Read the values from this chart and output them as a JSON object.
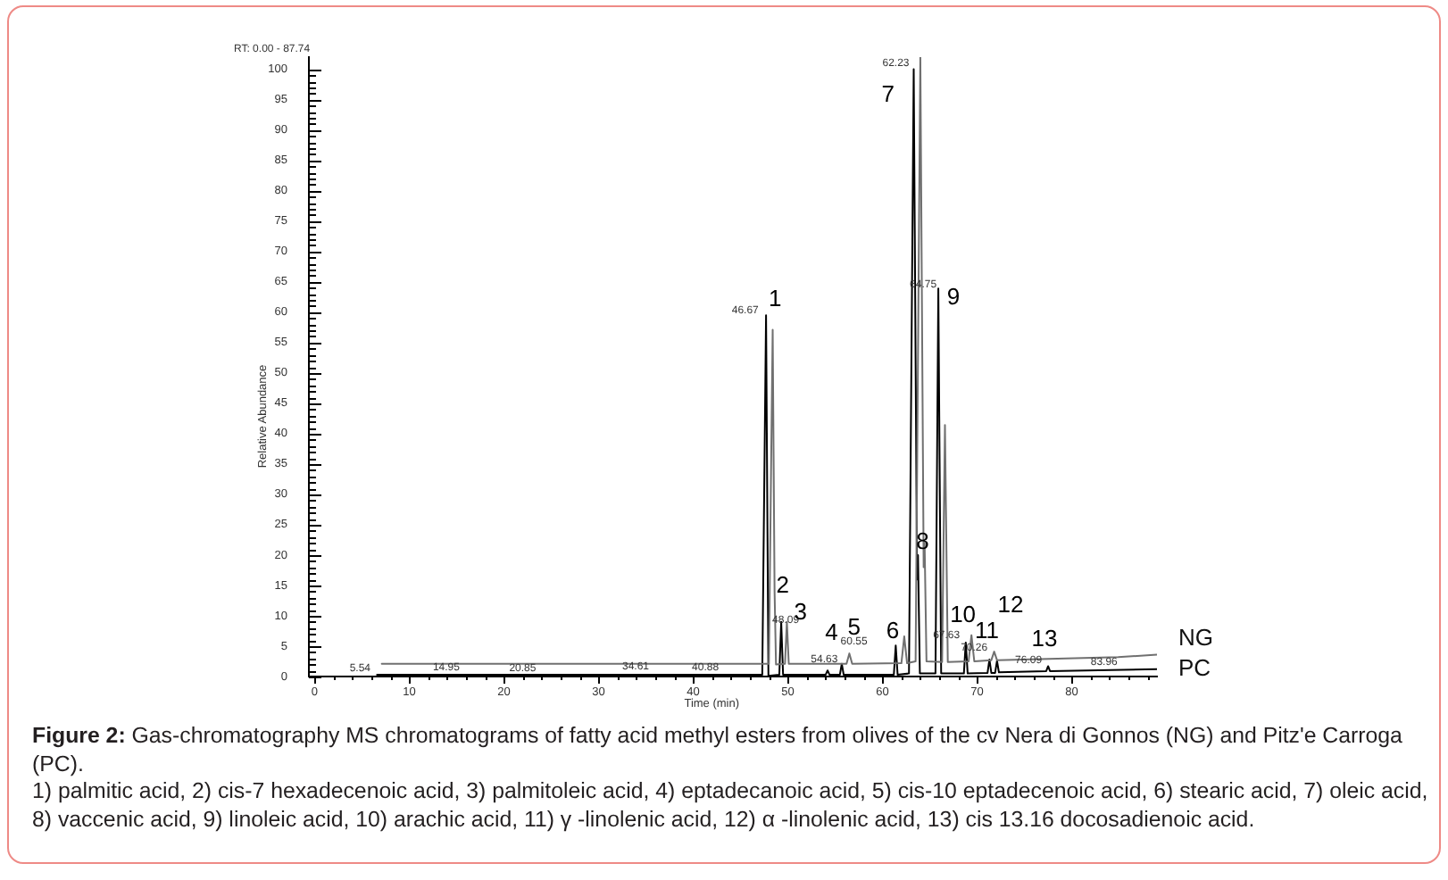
{
  "chart_data": {
    "type": "line",
    "xlabel": "Time (min)",
    "ylabel": "Relative Abundance",
    "xlim": [
      -0.6,
      89
    ],
    "ylim": [
      0,
      102
    ],
    "xticks": [
      0,
      {
        "value": 2,
        "label": null
      },
      {
        "value": 4,
        "label": null
      },
      {
        "value": 6,
        "label": null
      },
      {
        "value": 8,
        "label": null
      },
      10,
      {
        "value": 12,
        "label": null
      },
      {
        "value": 14,
        "label": null
      },
      {
        "value": 16,
        "label": null
      },
      {
        "value": 18,
        "label": null
      },
      20,
      {
        "value": 22,
        "label": null
      },
      {
        "value": 24,
        "label": null
      },
      {
        "value": 26,
        "label": null
      },
      {
        "value": 28,
        "label": null
      },
      30,
      {
        "value": 32,
        "label": null
      },
      {
        "value": 34,
        "label": null
      },
      {
        "value": 36,
        "label": null
      },
      {
        "value": 38,
        "label": null
      },
      40,
      {
        "value": 42,
        "label": null
      },
      {
        "value": 44,
        "label": null
      },
      {
        "value": 46,
        "label": null
      },
      {
        "value": 48,
        "label": null
      },
      50,
      {
        "value": 52,
        "label": null
      },
      {
        "value": 54,
        "label": null
      },
      {
        "value": 56,
        "label": null
      },
      {
        "value": 58,
        "label": null
      },
      60,
      {
        "value": 62,
        "label": null
      },
      {
        "value": 64,
        "label": null
      },
      {
        "value": 66,
        "label": null
      },
      {
        "value": 68,
        "label": null
      },
      70,
      {
        "value": 72,
        "label": null
      },
      {
        "value": 74,
        "label": null
      },
      {
        "value": 76,
        "label": null
      },
      {
        "value": 78,
        "label": null
      },
      80,
      {
        "value": 82,
        "label": null
      },
      {
        "value": 84,
        "label": null
      },
      {
        "value": 86,
        "label": null
      },
      {
        "value": 88,
        "label": null
      }
    ],
    "yticks": [
      0,
      {
        "value": 1,
        "label": null
      },
      {
        "value": 2,
        "label": null
      },
      {
        "value": 3,
        "label": null
      },
      {
        "value": 4,
        "label": null
      },
      5,
      {
        "value": 6,
        "label": null
      },
      {
        "value": 7,
        "label": null
      },
      {
        "value": 8,
        "label": null
      },
      {
        "value": 9,
        "label": null
      },
      10,
      {
        "value": 11,
        "label": null
      },
      {
        "value": 12,
        "label": null
      },
      {
        "value": 13,
        "label": null
      },
      {
        "value": 14,
        "label": null
      },
      15,
      {
        "value": 16,
        "label": null
      },
      {
        "value": 17,
        "label": null
      },
      {
        "value": 18,
        "label": null
      },
      {
        "value": 19,
        "label": null
      },
      20,
      {
        "value": 21,
        "label": null
      },
      {
        "value": 22,
        "label": null
      },
      {
        "value": 23,
        "label": null
      },
      {
        "value": 24,
        "label": null
      },
      25,
      {
        "value": 26,
        "label": null
      },
      {
        "value": 27,
        "label": null
      },
      {
        "value": 28,
        "label": null
      },
      {
        "value": 29,
        "label": null
      },
      30,
      {
        "value": 31,
        "label": null
      },
      {
        "value": 32,
        "label": null
      },
      {
        "value": 33,
        "label": null
      },
      {
        "value": 34,
        "label": null
      },
      35,
      {
        "value": 36,
        "label": null
      },
      {
        "value": 37,
        "label": null
      },
      {
        "value": 38,
        "label": null
      },
      {
        "value": 39,
        "label": null
      },
      40,
      {
        "value": 41,
        "label": null
      },
      {
        "value": 42,
        "label": null
      },
      {
        "value": 43,
        "label": null
      },
      {
        "value": 44,
        "label": null
      },
      45,
      {
        "value": 46,
        "label": null
      },
      {
        "value": 47,
        "label": null
      },
      {
        "value": 48,
        "label": null
      },
      {
        "value": 49,
        "label": null
      },
      50,
      {
        "value": 51,
        "label": null
      },
      {
        "value": 52,
        "label": null
      },
      {
        "value": 53,
        "label": null
      },
      {
        "value": 54,
        "label": null
      },
      55,
      {
        "value": 56,
        "label": null
      },
      {
        "value": 57,
        "label": null
      },
      {
        "value": 58,
        "label": null
      },
      {
        "value": 59,
        "label": null
      },
      60,
      {
        "value": 61,
        "label": null
      },
      {
        "value": 62,
        "label": null
      },
      {
        "value": 63,
        "label": null
      },
      {
        "value": 64,
        "label": null
      },
      65,
      {
        "value": 66,
        "label": null
      },
      {
        "value": 67,
        "label": null
      },
      {
        "value": 68,
        "label": null
      },
      {
        "value": 69,
        "label": null
      },
      70,
      {
        "value": 71,
        "label": null
      },
      {
        "value": 72,
        "label": null
      },
      {
        "value": 73,
        "label": null
      },
      {
        "value": 74,
        "label": null
      },
      75,
      {
        "value": 76,
        "label": null
      },
      {
        "value": 77,
        "label": null
      },
      {
        "value": 78,
        "label": null
      },
      {
        "value": 79,
        "label": null
      },
      80,
      {
        "value": 81,
        "label": null
      },
      {
        "value": 82,
        "label": null
      },
      {
        "value": 83,
        "label": null
      },
      {
        "value": 84,
        "label": null
      },
      85,
      {
        "value": 86,
        "label": null
      },
      {
        "value": 87,
        "label": null
      },
      {
        "value": 88,
        "label": null
      },
      {
        "value": 89,
        "label": null
      },
      90,
      {
        "value": 91,
        "label": null
      },
      {
        "value": 92,
        "label": null
      },
      {
        "value": 93,
        "label": null
      },
      {
        "value": 94,
        "label": null
      },
      95,
      {
        "value": 96,
        "label": null
      },
      {
        "value": 97,
        "label": null
      },
      {
        "value": 98,
        "label": null
      },
      {
        "value": 99,
        "label": null
      },
      100
    ],
    "series": [
      {
        "name": "NG",
        "color": "#707070",
        "x": [
          7.1,
          48.0,
          48.2,
          48.4,
          48.6,
          48.75,
          49.7,
          49.9,
          50.1,
          56.2,
          56.5,
          56.8,
          62.0,
          62.3,
          62.6,
          63.5,
          64.0,
          64.35,
          64.45,
          64.65,
          66.3,
          66.6,
          66.9,
          69.1,
          69.4,
          69.7,
          71.5,
          71.8,
          72.1,
          84.9,
          89
        ],
        "values": [
          2.1,
          2.1,
          30,
          57.1,
          14,
          2.0,
          2.1,
          9.0,
          2.1,
          2.1,
          3.8,
          2.1,
          2.2,
          6.6,
          2.2,
          2.5,
          102,
          18,
          22,
          2.5,
          2.4,
          41.4,
          2.4,
          2.5,
          6.8,
          2.5,
          2.7,
          4.1,
          2.7,
          3.2,
          3.6
        ]
      },
      {
        "name": "PC",
        "color": "#000000",
        "x": [
          6.6,
          15.2,
          23.3,
          35.2,
          42.6,
          47.3,
          47.5,
          47.7,
          47.95,
          49.1,
          49.3,
          49.5,
          54.0,
          54.2,
          54.4,
          55.5,
          55.7,
          55.9,
          61.2,
          61.4,
          61.6,
          62.8,
          63.3,
          63.65,
          63.75,
          63.95,
          65.6,
          65.9,
          66.2,
          68.6,
          68.8,
          69.0,
          71.1,
          71.3,
          71.5,
          71.9,
          72.1,
          72.3,
          77.3,
          77.5,
          77.7,
          89
        ],
        "values": [
          0.3,
          0.3,
          0.3,
          0.3,
          0.3,
          0.3,
          30,
          59.5,
          0.1,
          0.3,
          9.0,
          0.3,
          0.3,
          1.0,
          0.3,
          0.3,
          2.1,
          0.3,
          0.3,
          5.1,
          0.3,
          0.5,
          100,
          16,
          20,
          0.5,
          0.5,
          63.9,
          0.5,
          0.5,
          5.6,
          0.5,
          0.6,
          2.8,
          0.6,
          0.6,
          2.6,
          0.7,
          0.9,
          1.7,
          0.9,
          1.2
        ]
      }
    ],
    "annotations": [
      "RT: 0.00 - 87.74",
      {
        "text": "5.54",
        "x": 6.6,
        "y": 0.3
      },
      {
        "text": "14.95",
        "x": 15.2,
        "y": 0.3
      },
      {
        "text": "20.85",
        "x": 23.3,
        "y": 0.3
      },
      {
        "text": "34.61",
        "x": 35.2,
        "y": 0.3
      },
      {
        "text": "40.88",
        "x": 42.6,
        "y": 0.3
      },
      {
        "text": "46.67",
        "x": 47.7,
        "y": 59.5
      },
      {
        "text": "1",
        "x": 47.7,
        "y": 59.5
      },
      {
        "text": "2",
        "x": 48.6,
        "y": 14
      },
      {
        "text": "48.09",
        "x": 49.3,
        "y": 9.0
      },
      {
        "text": "3",
        "x": 49.9,
        "y": 9.0
      },
      {
        "text": "4",
        "x": 54.2,
        "y": 1.0
      },
      {
        "text": "54.63",
        "x": 55.7,
        "y": 2.1
      },
      {
        "text": "5",
        "x": 56.5,
        "y": 3.8
      },
      {
        "text": "60.55",
        "x": 56.5,
        "y": 3.8
      },
      {
        "text": "6",
        "x": 61.4,
        "y": 5.1
      },
      {
        "text": "62.23",
        "x": 63.3,
        "y": 100
      },
      {
        "text": "7",
        "x": 63.3,
        "y": 100
      },
      {
        "text": "8",
        "x": 63.75,
        "y": 20
      },
      {
        "text": "64.75",
        "x": 65.9,
        "y": 63.9
      },
      {
        "text": "9",
        "x": 65.9,
        "y": 63.9
      },
      {
        "text": "10",
        "x": 68.8,
        "y": 5.6
      },
      {
        "text": "67.63",
        "x": 69.4,
        "y": 6.8
      },
      {
        "text": "11",
        "x": 71.8,
        "y": 4.1
      },
      {
        "text": "70.26",
        "x": 71.3,
        "y": 2.8
      },
      {
        "text": "12",
        "x": 72.1,
        "y": 2.6
      },
      {
        "text": "13",
        "x": 77.5,
        "y": 1.7
      },
      {
        "text": "76.09",
        "x": 77.5,
        "y": 1.7
      },
      {
        "text": "83.96",
        "x": 84.9,
        "y": 3.2
      },
      "Figure 2:",
      "Gas-chromatography MS chromatograms of fatty acid methyl esters from olives of the cv Nera di Gonnos (NG) and Pitz'e Carroga (PC).",
      "1) palmitic acid, 2) cis-7 hexadecenoic acid, 3) palmitoleic acid, 4) eptadecanoic acid, 5) cis-10 eptadecenoic acid, 6) stearic acid, 7) oleic acid, 8) vaccenic acid, 9) linoleic acid, 10) arachic acid, 11) γ -linolenic acid, 12) α -linolenic acid, 13) cis 13.16 docosadienoic acid."
    ]
  }
}
